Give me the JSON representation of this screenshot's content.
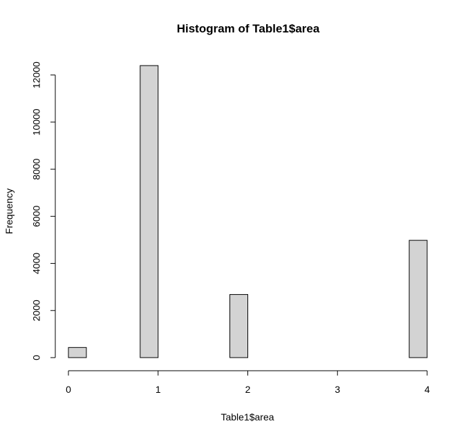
{
  "chart_data": {
    "type": "bar",
    "title": "Histogram of Table1$area",
    "xlabel": "Table1$area",
    "ylabel": "Frequency",
    "bins": [
      {
        "start": 0.0,
        "end": 0.2,
        "count": 430
      },
      {
        "start": 0.2,
        "end": 0.4,
        "count": 0
      },
      {
        "start": 0.4,
        "end": 0.6,
        "count": 0
      },
      {
        "start": 0.6,
        "end": 0.8,
        "count": 0
      },
      {
        "start": 0.8,
        "end": 1.0,
        "count": 12400
      },
      {
        "start": 1.0,
        "end": 1.2,
        "count": 0
      },
      {
        "start": 1.2,
        "end": 1.4,
        "count": 0
      },
      {
        "start": 1.4,
        "end": 1.6,
        "count": 0
      },
      {
        "start": 1.6,
        "end": 1.8,
        "count": 0
      },
      {
        "start": 1.8,
        "end": 2.0,
        "count": 2680
      },
      {
        "start": 2.0,
        "end": 2.2,
        "count": 0
      },
      {
        "start": 2.2,
        "end": 2.4,
        "count": 0
      },
      {
        "start": 2.4,
        "end": 2.6,
        "count": 0
      },
      {
        "start": 2.6,
        "end": 2.8,
        "count": 0
      },
      {
        "start": 2.8,
        "end": 3.0,
        "count": 0
      },
      {
        "start": 3.0,
        "end": 3.2,
        "count": 0
      },
      {
        "start": 3.2,
        "end": 3.4,
        "count": 0
      },
      {
        "start": 3.4,
        "end": 3.6,
        "count": 0
      },
      {
        "start": 3.6,
        "end": 3.8,
        "count": 0
      },
      {
        "start": 3.8,
        "end": 4.0,
        "count": 4980
      }
    ],
    "xlim": [
      0,
      4
    ],
    "ylim": [
      0,
      12400
    ],
    "xticks": [
      "0",
      "1",
      "2",
      "3",
      "4"
    ],
    "yticks": [
      "0",
      "2000",
      "4000",
      "6000",
      "8000",
      "10000",
      "12000"
    ],
    "bar_fill": "#d3d3d3",
    "bar_stroke": "#000000",
    "grid": false,
    "legend": "none"
  }
}
